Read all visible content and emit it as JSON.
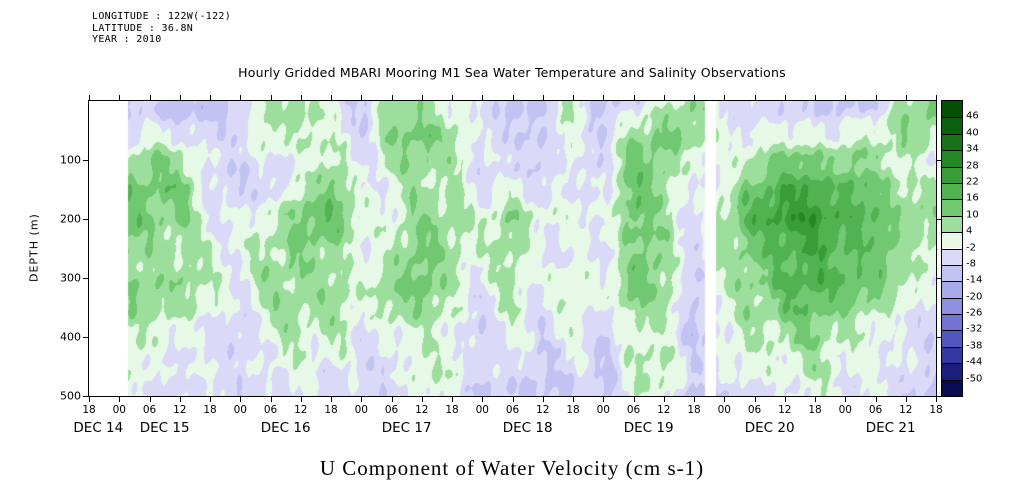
{
  "header": {
    "longitude": "LONGITUDE : 122W(-122)",
    "latitude": "LATITUDE : 36.8N",
    "year": "YEAR : 2010"
  },
  "title": "Hourly Gridded MBARI Mooring M1 Sea Water Temperature and Salinity Observations",
  "x_axis_title": "U Component of Water Velocity (cm s-1)",
  "chart_data": {
    "type": "heatmap",
    "title": "Hourly Gridded MBARI Mooring M1 Sea Water Temperature and Salinity Observations",
    "xlabel": "Time, Dec 14 18:00 to Dec 21 18:00 2010, ticks every 6 hours",
    "ylabel": "DEPTH (m)",
    "units": "cm s-1",
    "x_tick_labels": [
      "18",
      "00",
      "06",
      "12",
      "18",
      "00",
      "06",
      "12",
      "18",
      "00",
      "06",
      "12",
      "18",
      "00",
      "06",
      "12",
      "18",
      "00",
      "06",
      "12",
      "18",
      "00",
      "06",
      "12",
      "18",
      "00",
      "06",
      "12",
      "18"
    ],
    "date_labels": [
      "DEC 14",
      "DEC 15",
      "DEC 16",
      "DEC 17",
      "DEC 18",
      "DEC 19",
      "DEC 20",
      "DEC 21"
    ],
    "y_tick_labels": [
      "100",
      "200",
      "300",
      "400",
      "500"
    ],
    "depth_range_m": [
      0,
      500
    ],
    "colorbar": {
      "tick_labels": [
        "46",
        "40",
        "34",
        "28",
        "22",
        "16",
        "10",
        "4",
        "-2",
        "-8",
        "-14",
        "-20",
        "-26",
        "-32",
        "-38",
        "-44",
        "-50"
      ],
      "boundaries": [
        46,
        40,
        34,
        28,
        22,
        16,
        10,
        4,
        -2,
        -8,
        -14,
        -20,
        -26,
        -32,
        -38,
        -44,
        -50
      ],
      "colors": [
        "#025002",
        "#0c5f0c",
        "#187218",
        "#268726",
        "#389c38",
        "#50b250",
        "#70c870",
        "#9cdf9c",
        "#e6f8e6",
        "#dadaf8",
        "#c2c3f2",
        "#a8aae9",
        "#8d90de",
        "#7175d1",
        "#5257c0",
        "#3438a4",
        "#1b1e7d",
        "#0a0c52"
      ]
    },
    "grid": {
      "time_step_hours": 6,
      "depths_m": [
        0,
        50,
        100,
        150,
        200,
        250,
        300,
        350,
        400,
        450,
        500
      ],
      "columns": [
        [
          -6,
          -4,
          2,
          8,
          10,
          8,
          4,
          0,
          -2,
          -4,
          -4
        ],
        [
          -8,
          -2,
          6,
          12,
          14,
          12,
          10,
          6,
          2,
          0,
          -2
        ],
        [
          -6,
          0,
          10,
          14,
          12,
          10,
          8,
          6,
          4,
          0,
          -2
        ],
        [
          -10,
          -6,
          4,
          10,
          8,
          6,
          6,
          4,
          2,
          -2,
          -4
        ],
        [
          -8,
          -8,
          -4,
          -2,
          0,
          2,
          2,
          0,
          -2,
          -4,
          -6
        ],
        [
          -6,
          -8,
          -6,
          -4,
          -2,
          0,
          0,
          -2,
          -4,
          -6,
          -6
        ],
        [
          6,
          4,
          -2,
          -4,
          0,
          4,
          6,
          4,
          0,
          -4,
          -6
        ],
        [
          8,
          6,
          2,
          6,
          10,
          12,
          10,
          8,
          4,
          0,
          -2
        ],
        [
          -2,
          0,
          4,
          10,
          12,
          10,
          8,
          6,
          4,
          0,
          -2
        ],
        [
          -6,
          -4,
          -2,
          0,
          2,
          2,
          0,
          -2,
          -4,
          -6,
          -6
        ],
        [
          10,
          8,
          4,
          0,
          2,
          6,
          8,
          6,
          2,
          -2,
          -4
        ],
        [
          8,
          10,
          8,
          6,
          8,
          10,
          10,
          8,
          6,
          2,
          0
        ],
        [
          2,
          4,
          6,
          8,
          10,
          8,
          6,
          4,
          2,
          0,
          -2
        ],
        [
          -6,
          -6,
          -4,
          -2,
          0,
          0,
          -2,
          -4,
          -6,
          -8,
          -8
        ],
        [
          -8,
          -6,
          -2,
          2,
          6,
          8,
          6,
          2,
          -2,
          -6,
          -8
        ],
        [
          -10,
          -8,
          -6,
          -4,
          -2,
          0,
          0,
          -2,
          -4,
          -6,
          -8
        ],
        [
          6,
          2,
          -2,
          -4,
          -2,
          0,
          2,
          0,
          -2,
          -4,
          -6
        ],
        [
          -8,
          -6,
          -4,
          -2,
          0,
          0,
          -2,
          -4,
          -6,
          -8,
          -10
        ],
        [
          -2,
          4,
          10,
          12,
          12,
          10,
          10,
          8,
          6,
          4,
          2
        ],
        [
          4,
          8,
          10,
          10,
          8,
          8,
          6,
          6,
          4,
          2,
          0
        ],
        [
          8,
          6,
          2,
          -2,
          -4,
          -4,
          -6,
          -6,
          -8,
          -8,
          -10
        ],
        [
          -4,
          -2,
          0,
          2,
          4,
          4,
          2,
          0,
          -2,
          -4,
          -6
        ],
        [
          -6,
          0,
          8,
          14,
          16,
          14,
          12,
          8,
          4,
          0,
          -2
        ],
        [
          -8,
          -2,
          10,
          18,
          22,
          20,
          16,
          12,
          6,
          2,
          0
        ],
        [
          -6,
          0,
          12,
          20,
          26,
          24,
          18,
          12,
          8,
          4,
          0
        ],
        [
          -8,
          -2,
          8,
          16,
          20,
          18,
          14,
          10,
          6,
          2,
          -2
        ],
        [
          -6,
          0,
          6,
          12,
          14,
          12,
          10,
          6,
          2,
          -2,
          -4
        ],
        [
          8,
          6,
          4,
          8,
          10,
          8,
          6,
          2,
          -2,
          -6,
          -8
        ],
        [
          10,
          4,
          0,
          4,
          6,
          4,
          2,
          -2,
          -6,
          -8,
          -10
        ]
      ]
    },
    "missing_data": {
      "left_gap_fraction": 0.045,
      "gap_center_fraction": 0.734,
      "gap_half_width_fraction": 0.006
    },
    "noise_amplitude": 1.0
  }
}
